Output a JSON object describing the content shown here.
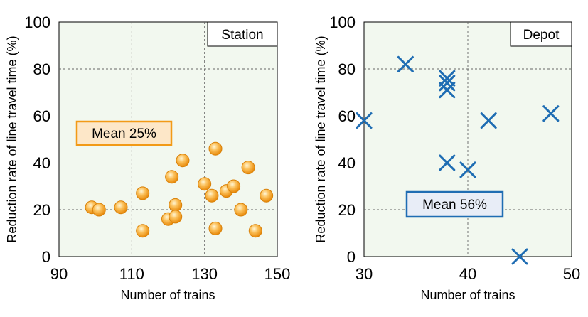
{
  "chart_data": [
    {
      "type": "scatter",
      "panel_label": "Station",
      "xlabel": "Number of trains",
      "ylabel": "Reduction rate of line travel time (%)",
      "xlim": [
        90,
        150
      ],
      "ylim": [
        0,
        100
      ],
      "xticks": [
        "90",
        "110",
        "130",
        "150"
      ],
      "yticks": [
        "0",
        "20",
        "40",
        "60",
        "80",
        "100"
      ],
      "grid": "dashed at x=110, x=130, y=20, y=80",
      "marker": "circle",
      "color": "#f5a21b",
      "annotation": "Mean 25%",
      "points": [
        {
          "x": 99,
          "y": 21
        },
        {
          "x": 101,
          "y": 20
        },
        {
          "x": 107,
          "y": 21
        },
        {
          "x": 113,
          "y": 27
        },
        {
          "x": 113,
          "y": 11
        },
        {
          "x": 120,
          "y": 16
        },
        {
          "x": 121,
          "y": 34
        },
        {
          "x": 122,
          "y": 22
        },
        {
          "x": 122,
          "y": 17
        },
        {
          "x": 124,
          "y": 41
        },
        {
          "x": 130,
          "y": 31
        },
        {
          "x": 132,
          "y": 26
        },
        {
          "x": 133,
          "y": 46
        },
        {
          "x": 133,
          "y": 12
        },
        {
          "x": 136,
          "y": 28
        },
        {
          "x": 138,
          "y": 30
        },
        {
          "x": 140,
          "y": 20
        },
        {
          "x": 142,
          "y": 38
        },
        {
          "x": 144,
          "y": 11
        },
        {
          "x": 147,
          "y": 26
        }
      ]
    },
    {
      "type": "scatter",
      "panel_label": "Depot",
      "xlabel": "Number of trains",
      "ylabel": "Reduction rate of line travel time (%)",
      "xlim": [
        30,
        50
      ],
      "ylim": [
        0,
        100
      ],
      "xticks": [
        "30",
        "40",
        "50"
      ],
      "yticks": [
        "0",
        "20",
        "40",
        "60",
        "80",
        "100"
      ],
      "grid": "dashed at x=40, y=20, y=80",
      "marker": "x",
      "color": "#1f6db3",
      "annotation": "Mean 56%",
      "points": [
        {
          "x": 30,
          "y": 58
        },
        {
          "x": 34,
          "y": 82
        },
        {
          "x": 38,
          "y": 76
        },
        {
          "x": 38,
          "y": 74
        },
        {
          "x": 38,
          "y": 71
        },
        {
          "x": 38,
          "y": 40
        },
        {
          "x": 40,
          "y": 37
        },
        {
          "x": 42,
          "y": 58
        },
        {
          "x": 45,
          "y": 0
        },
        {
          "x": 48,
          "y": 61
        }
      ]
    }
  ]
}
